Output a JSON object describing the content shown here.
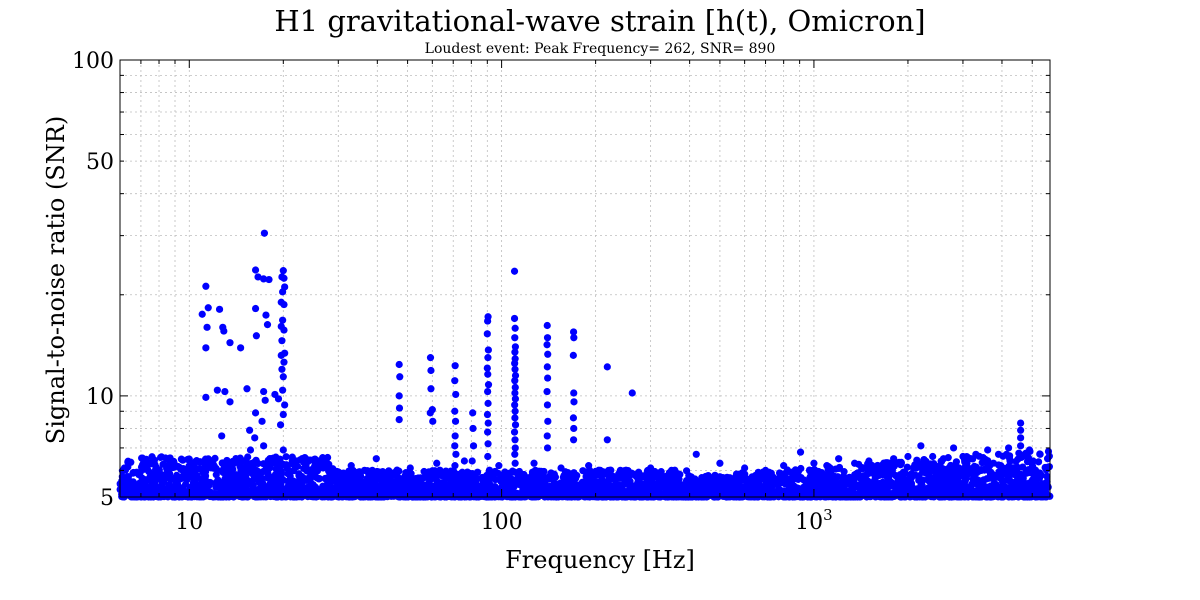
{
  "chart_data": {
    "type": "scatter",
    "title": "H1 gravitational-wave strain [h(t), Omicron]",
    "subtitle": "Loudest event: Peak Frequency= 262, SNR= 890",
    "xlabel": "Frequency [Hz]",
    "ylabel": "Signal-to-noise ratio (SNR)",
    "xscale": "log",
    "yscale": "log",
    "xlim": [
      6,
      5700
    ],
    "ylim": [
      5,
      100
    ],
    "grid": true,
    "marker_color": "#0000ff",
    "x_ticks": [
      {
        "value": 10,
        "label": "10"
      },
      {
        "value": 100,
        "label": "100"
      },
      {
        "value": 1000,
        "label": "10",
        "sup": "3"
      }
    ],
    "y_ticks": [
      {
        "value": 5,
        "label": "5"
      },
      {
        "value": 10,
        "label": "10"
      },
      {
        "value": 50,
        "label": "50"
      },
      {
        "value": 100,
        "label": "100"
      }
    ],
    "points": [
      [
        17.4,
        30.5
      ],
      [
        110,
        23.5
      ],
      [
        16.3,
        23.7
      ],
      [
        16.6,
        22.6
      ],
      [
        20,
        23.6
      ],
      [
        20.1,
        22.4
      ],
      [
        17.3,
        22.3
      ],
      [
        18,
        22.2
      ],
      [
        19.8,
        22.6
      ],
      [
        20.2,
        21.1
      ],
      [
        19.9,
        20.4
      ],
      [
        11.3,
        21.2
      ],
      [
        19.7,
        19
      ],
      [
        16.3,
        18.2
      ],
      [
        17.6,
        17.4
      ],
      [
        20.1,
        18.7
      ],
      [
        11,
        17.5
      ],
      [
        11.5,
        18.3
      ],
      [
        12.5,
        18.1
      ],
      [
        19.9,
        16.8
      ],
      [
        11.4,
        16
      ],
      [
        12.8,
        16
      ],
      [
        17.8,
        16.3
      ],
      [
        19.7,
        16.1
      ],
      [
        20.1,
        15.7
      ],
      [
        16.4,
        15.1
      ],
      [
        12.9,
        15.6
      ],
      [
        19.8,
        14.6
      ],
      [
        13.5,
        14.4
      ],
      [
        11.3,
        13.9
      ],
      [
        14.6,
        13.9
      ],
      [
        20.2,
        13.4
      ],
      [
        19.7,
        13.2
      ],
      [
        20.1,
        12.6
      ],
      [
        19.8,
        12
      ],
      [
        20,
        11.4
      ],
      [
        12.3,
        10.4
      ],
      [
        13,
        10.3
      ],
      [
        15.3,
        10.5
      ],
      [
        17.3,
        10.3
      ],
      [
        18.8,
        10.1
      ],
      [
        19.9,
        10.4
      ],
      [
        11.3,
        9.9
      ],
      [
        13.5,
        9.6
      ],
      [
        17.5,
        9.7
      ],
      [
        19.3,
        9.8
      ],
      [
        20.2,
        9.4
      ],
      [
        16.3,
        8.9
      ],
      [
        20,
        8.8
      ],
      [
        17.1,
        8.4
      ],
      [
        19.6,
        8.2
      ],
      [
        15.6,
        7.9
      ],
      [
        16.2,
        7.5
      ],
      [
        12.7,
        7.6
      ],
      [
        17.3,
        7.1
      ],
      [
        15.7,
        6.9
      ],
      [
        20,
        6.9
      ],
      [
        16.3,
        6.3
      ],
      [
        18.3,
        6.5
      ],
      [
        47,
        12.4
      ],
      [
        47.2,
        11.4
      ],
      [
        59.2,
        13
      ],
      [
        59.4,
        11.9
      ],
      [
        60,
        9.1
      ],
      [
        47,
        10
      ],
      [
        47.1,
        9.2
      ],
      [
        47,
        8.5
      ],
      [
        59.4,
        10.5
      ],
      [
        59.1,
        8.9
      ],
      [
        60.2,
        8.4
      ],
      [
        71,
        12.3
      ],
      [
        70.8,
        11.1
      ],
      [
        71.3,
        10.1
      ],
      [
        70.8,
        9
      ],
      [
        71.2,
        8.4
      ],
      [
        71,
        7.6
      ],
      [
        70.8,
        7.1
      ],
      [
        71.4,
        6.7
      ],
      [
        70.9,
        6.2
      ],
      [
        80.8,
        8.9
      ],
      [
        81,
        8
      ],
      [
        81.3,
        7.1
      ],
      [
        80.5,
        6.4
      ],
      [
        90.5,
        17.2
      ],
      [
        90.2,
        16.7
      ],
      [
        90,
        15.3
      ],
      [
        90.7,
        13.7
      ],
      [
        90.4,
        13
      ],
      [
        90,
        12.1
      ],
      [
        90.3,
        11.6
      ],
      [
        90.8,
        10.8
      ],
      [
        90.2,
        10.3
      ],
      [
        90.5,
        9.5
      ],
      [
        90.1,
        8.8
      ],
      [
        90.6,
        8.3
      ],
      [
        90.2,
        7.8
      ],
      [
        90.5,
        7.2
      ],
      [
        90.3,
        6.6
      ],
      [
        110,
        17
      ],
      [
        110.5,
        15.9
      ],
      [
        110.2,
        14.9
      ],
      [
        110.7,
        14
      ],
      [
        110.3,
        13.5
      ],
      [
        110.5,
        12.9
      ],
      [
        110.1,
        12.5
      ],
      [
        110.4,
        12
      ],
      [
        110.8,
        11.5
      ],
      [
        110.2,
        11.1
      ],
      [
        110.6,
        10.6
      ],
      [
        110.3,
        10.2
      ],
      [
        110.7,
        9.8
      ],
      [
        110.1,
        9.4
      ],
      [
        110.5,
        9
      ],
      [
        110.3,
        8.6
      ],
      [
        110.8,
        8.2
      ],
      [
        110,
        7.8
      ],
      [
        110.4,
        7.4
      ],
      [
        110.6,
        7
      ],
      [
        110.2,
        6.7
      ],
      [
        110.5,
        6.3
      ],
      [
        140,
        16.2
      ],
      [
        140.3,
        14.9
      ],
      [
        139.8,
        14.2
      ],
      [
        140.5,
        13.3
      ],
      [
        140.1,
        12.2
      ],
      [
        140.4,
        11.3
      ],
      [
        139.8,
        10.3
      ],
      [
        140.2,
        9.4
      ],
      [
        140.6,
        8.4
      ],
      [
        140,
        7.6
      ],
      [
        140.3,
        7
      ],
      [
        170,
        15.5
      ],
      [
        170.3,
        14.9
      ],
      [
        169.7,
        13.2
      ],
      [
        170.2,
        10.2
      ],
      [
        170.5,
        9.6
      ],
      [
        169.8,
        8.6
      ],
      [
        170.2,
        8
      ],
      [
        170,
        7.4
      ],
      [
        218,
        12.2
      ],
      [
        218,
        7.4
      ],
      [
        262,
        10.2
      ],
      [
        12,
        6.2
      ],
      [
        22,
        6.4
      ],
      [
        33,
        6.2
      ],
      [
        39.7,
        6.5
      ],
      [
        51,
        6.1
      ],
      [
        62,
        6.3
      ],
      [
        76,
        6.4
      ],
      [
        98,
        6.2
      ],
      [
        127,
        6.3
      ],
      [
        155,
        6.1
      ],
      [
        190,
        6.2
      ],
      [
        240,
        6
      ],
      [
        300,
        6.1
      ],
      [
        350,
        6
      ],
      [
        420,
        6.7
      ],
      [
        500,
        6.3
      ],
      [
        600,
        6.1
      ],
      [
        700,
        6
      ],
      [
        800,
        6.2
      ],
      [
        906,
        6.8
      ],
      [
        1000,
        6.3
      ],
      [
        1100,
        6.2
      ],
      [
        1200,
        6.5
      ],
      [
        1350,
        6.3
      ],
      [
        1500,
        6.4
      ],
      [
        1650,
        6.2
      ],
      [
        1800,
        6.5
      ],
      [
        2000,
        6.6
      ],
      [
        2200,
        7.1
      ],
      [
        2400,
        6.6
      ],
      [
        2600,
        6.5
      ],
      [
        2800,
        7
      ],
      [
        3000,
        6.6
      ],
      [
        3300,
        6.7
      ],
      [
        3600,
        6.9
      ],
      [
        3900,
        6.7
      ],
      [
        4200,
        7
      ],
      [
        4590,
        8.3
      ],
      [
        4590,
        7.9
      ],
      [
        4590,
        7.5
      ],
      [
        4590,
        7.1
      ],
      [
        4900,
        6.9
      ],
      [
        5300,
        6.7
      ],
      [
        5600,
        6.5
      ]
    ]
  }
}
